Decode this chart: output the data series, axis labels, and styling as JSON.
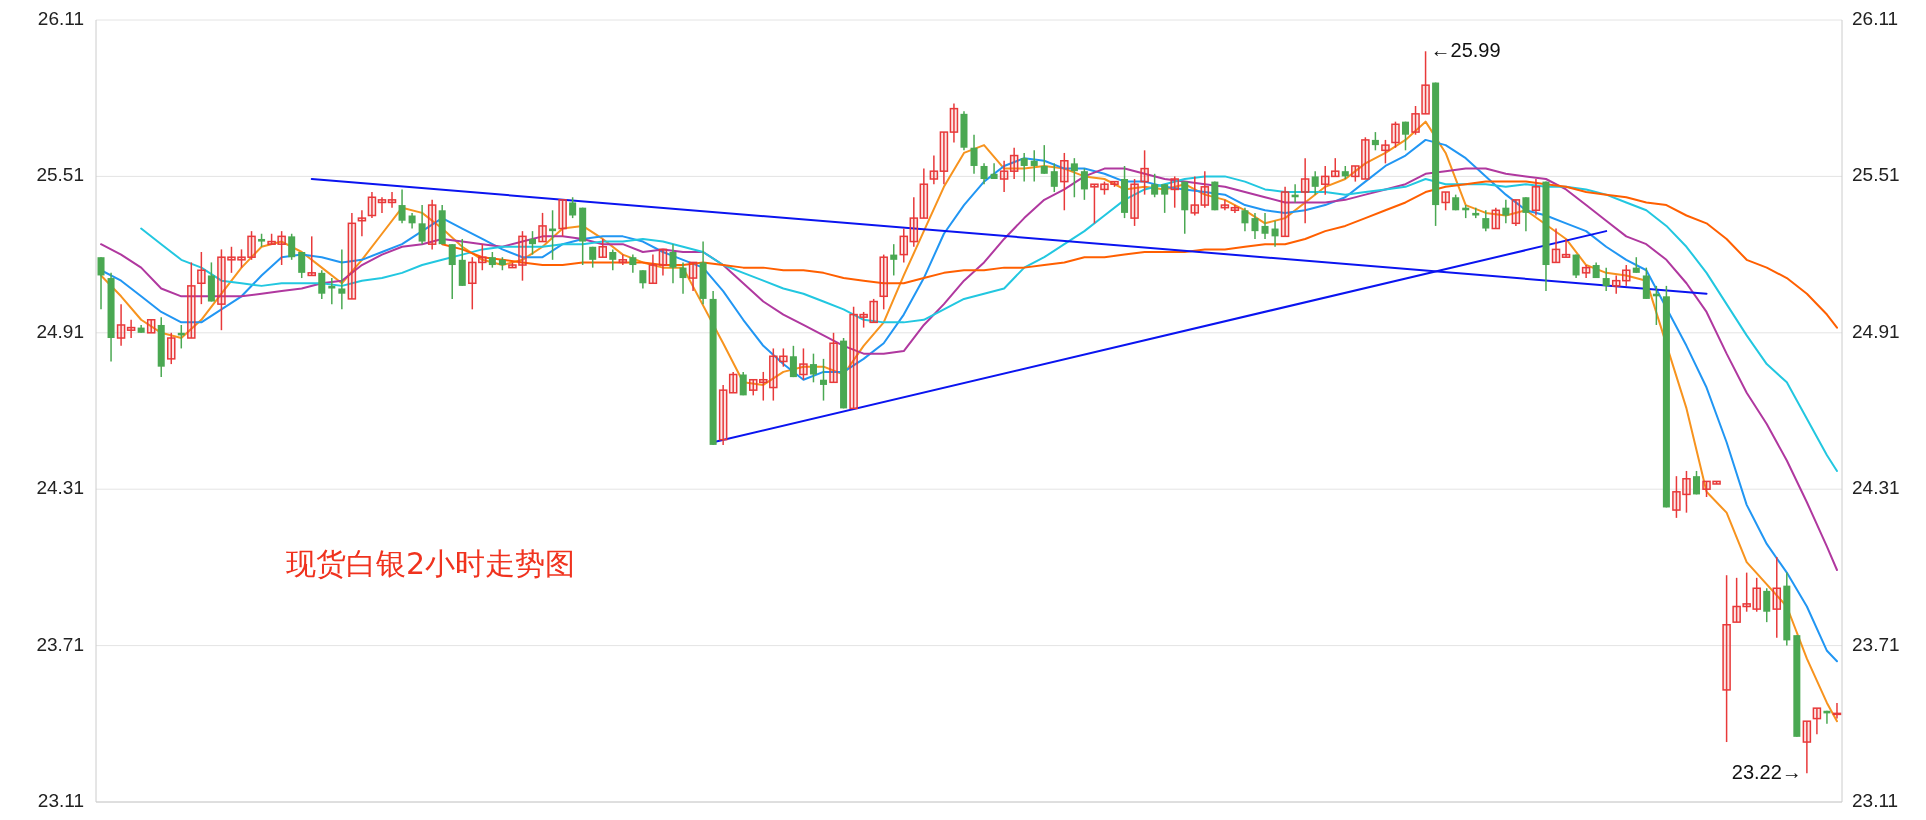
{
  "chart_data": {
    "type": "candlestick",
    "title": "现货白银2小时走势图",
    "categories": [
      null,
      null,
      null,
      null,
      null,
      null,
      null,
      null,
      null,
      null,
      null,
      null,
      null,
      null,
      null,
      null,
      null,
      null,
      null,
      null,
      null,
      null,
      null,
      null,
      null,
      null,
      null,
      null,
      null,
      null,
      null,
      null,
      null,
      null,
      null,
      null,
      null,
      null,
      null,
      null,
      null,
      null,
      null,
      null,
      null,
      null,
      null,
      null,
      null,
      null,
      null,
      null,
      null,
      null,
      null,
      null,
      null,
      null,
      null,
      null,
      null,
      null,
      null,
      null,
      null,
      null,
      null,
      null,
      null,
      null,
      null,
      null,
      null,
      null,
      null,
      null,
      null,
      null,
      null,
      null,
      null,
      null,
      null,
      null,
      null,
      null,
      null,
      null,
      null,
      null,
      null,
      null,
      null,
      null,
      null,
      null,
      null,
      null,
      null,
      null,
      null,
      null,
      null,
      null,
      null,
      null,
      null,
      null,
      null,
      null,
      null,
      null,
      null,
      null,
      null,
      null,
      null,
      null,
      null,
      null,
      null,
      null,
      null,
      null,
      null,
      null,
      null,
      null,
      null,
      null,
      null,
      null,
      null,
      null,
      null,
      null,
      null,
      null,
      null,
      null,
      null,
      null,
      null,
      null,
      null,
      null,
      null,
      null,
      null,
      null,
      null,
      null,
      null,
      null,
      null,
      null,
      null,
      null,
      null,
      null,
      null,
      null,
      null,
      null,
      null,
      null,
      null,
      null,
      null,
      null,
      null,
      null,
      null,
      null
    ],
    "ohlc": [
      [
        25.2,
        25.2,
        25.0,
        25.13
      ],
      [
        25.12,
        25.14,
        24.8,
        24.89
      ],
      [
        24.89,
        25.02,
        24.86,
        24.94
      ],
      [
        24.92,
        24.96,
        24.89,
        24.93
      ],
      [
        24.93,
        24.94,
        24.91,
        24.91
      ],
      [
        24.91,
        24.96,
        24.91,
        24.96
      ],
      [
        24.94,
        24.97,
        24.74,
        24.78
      ],
      [
        24.81,
        24.91,
        24.79,
        24.89
      ],
      [
        24.91,
        24.94,
        24.85,
        24.9
      ],
      [
        24.89,
        25.18,
        24.89,
        25.09
      ],
      [
        25.1,
        25.22,
        25.02,
        25.15
      ],
      [
        25.13,
        25.18,
        25.03,
        25.03
      ],
      [
        25.02,
        25.23,
        24.92,
        25.2
      ],
      [
        25.19,
        25.24,
        25.14,
        25.2
      ],
      [
        25.19,
        25.23,
        25.16,
        25.2
      ],
      [
        25.2,
        25.3,
        25.19,
        25.28
      ],
      [
        25.27,
        25.29,
        25.24,
        25.26
      ],
      [
        25.25,
        25.29,
        25.25,
        25.26
      ],
      [
        25.25,
        25.3,
        25.17,
        25.28
      ],
      [
        25.28,
        25.29,
        25.19,
        25.2
      ],
      [
        25.22,
        25.22,
        25.12,
        25.14
      ],
      [
        25.13,
        25.28,
        25.13,
        25.14
      ],
      [
        25.14,
        25.15,
        25.04,
        25.06
      ],
      [
        25.09,
        25.12,
        25.02,
        25.08
      ],
      [
        25.08,
        25.23,
        25.0,
        25.06
      ],
      [
        25.04,
        25.37,
        25.04,
        25.33
      ],
      [
        25.34,
        25.38,
        25.28,
        25.35
      ],
      [
        25.36,
        25.45,
        25.35,
        25.43
      ],
      [
        25.41,
        25.43,
        25.37,
        25.42
      ],
      [
        25.41,
        25.45,
        25.39,
        25.42
      ],
      [
        25.4,
        25.46,
        25.33,
        25.34
      ],
      [
        25.36,
        25.37,
        25.31,
        25.33
      ],
      [
        25.33,
        25.4,
        25.25,
        25.26
      ],
      [
        25.25,
        25.42,
        25.23,
        25.4
      ],
      [
        25.38,
        25.4,
        25.25,
        25.25
      ],
      [
        25.25,
        25.25,
        25.04,
        25.17
      ],
      [
        25.19,
        25.27,
        25.09,
        25.09
      ],
      [
        25.1,
        25.2,
        25.0,
        25.18
      ],
      [
        25.18,
        25.25,
        25.15,
        25.2
      ],
      [
        25.2,
        25.22,
        25.16,
        25.17
      ],
      [
        25.19,
        25.2,
        25.15,
        25.17
      ],
      [
        25.16,
        25.18,
        25.16,
        25.17
      ],
      [
        25.17,
        25.3,
        25.11,
        25.28
      ],
      [
        25.27,
        25.3,
        25.21,
        25.25
      ],
      [
        25.26,
        25.37,
        25.26,
        25.32
      ],
      [
        25.31,
        25.38,
        25.19,
        25.3
      ],
      [
        25.31,
        25.42,
        25.28,
        25.42
      ],
      [
        25.41,
        25.43,
        25.35,
        25.36
      ],
      [
        25.39,
        25.39,
        25.17,
        25.26
      ],
      [
        25.24,
        25.24,
        25.16,
        25.19
      ],
      [
        25.2,
        25.27,
        25.2,
        25.24
      ],
      [
        25.22,
        25.23,
        25.15,
        25.19
      ],
      [
        25.18,
        25.21,
        25.17,
        25.19
      ],
      [
        25.2,
        25.21,
        25.14,
        25.17
      ],
      [
        25.15,
        25.15,
        25.08,
        25.1
      ],
      [
        25.1,
        25.21,
        25.1,
        25.17
      ],
      [
        25.17,
        25.23,
        25.13,
        25.23
      ],
      [
        25.22,
        25.25,
        25.1,
        25.16
      ],
      [
        25.16,
        25.18,
        25.06,
        25.12
      ],
      [
        25.12,
        25.18,
        25.07,
        25.18
      ],
      [
        25.18,
        25.26,
        25.02,
        25.04
      ],
      [
        25.04,
        25.07,
        24.48,
        24.48
      ],
      [
        24.5,
        24.71,
        24.48,
        24.69
      ],
      [
        24.68,
        24.76,
        24.68,
        24.75
      ],
      [
        24.75,
        24.76,
        24.67,
        24.67
      ],
      [
        24.69,
        24.73,
        24.67,
        24.73
      ],
      [
        24.72,
        24.76,
        24.65,
        24.73
      ],
      [
        24.7,
        24.85,
        24.65,
        24.82
      ],
      [
        24.8,
        24.85,
        24.78,
        24.82
      ],
      [
        24.82,
        24.86,
        24.74,
        24.74
      ],
      [
        24.75,
        24.85,
        24.73,
        24.79
      ],
      [
        24.79,
        24.83,
        24.72,
        24.75
      ],
      [
        24.73,
        24.81,
        24.65,
        24.71
      ],
      [
        24.72,
        24.91,
        24.72,
        24.87
      ],
      [
        24.88,
        24.89,
        24.62,
        24.62
      ],
      [
        24.62,
        25.01,
        24.62,
        24.98
      ],
      [
        24.97,
        24.99,
        24.93,
        24.98
      ],
      [
        24.95,
        25.04,
        24.95,
        25.03
      ],
      [
        25.05,
        25.21,
        25.0,
        25.2
      ],
      [
        25.21,
        25.25,
        25.13,
        25.19
      ],
      [
        25.21,
        25.31,
        25.18,
        25.28
      ],
      [
        25.26,
        25.43,
        25.24,
        25.35
      ],
      [
        25.35,
        25.54,
        25.35,
        25.48
      ],
      [
        25.5,
        25.59,
        25.48,
        25.53
      ],
      [
        25.53,
        25.68,
        25.48,
        25.68
      ],
      [
        25.68,
        25.79,
        25.64,
        25.77
      ],
      [
        25.75,
        25.76,
        25.61,
        25.62
      ],
      [
        25.62,
        25.67,
        25.52,
        25.55
      ],
      [
        25.55,
        25.56,
        25.48,
        25.5
      ],
      [
        25.52,
        25.56,
        25.5,
        25.5
      ],
      [
        25.5,
        25.57,
        25.45,
        25.53
      ],
      [
        25.53,
        25.62,
        25.5,
        25.59
      ],
      [
        25.58,
        25.6,
        25.49,
        25.55
      ],
      [
        25.57,
        25.61,
        25.49,
        25.55
      ],
      [
        25.55,
        25.63,
        25.52,
        25.52
      ],
      [
        25.53,
        25.56,
        25.45,
        25.47
      ],
      [
        25.49,
        25.6,
        25.38,
        25.57
      ],
      [
        25.56,
        25.58,
        25.43,
        25.53
      ],
      [
        25.53,
        25.54,
        25.42,
        25.46
      ],
      [
        25.47,
        25.48,
        25.33,
        25.48
      ],
      [
        25.46,
        25.49,
        25.44,
        25.48
      ],
      [
        25.48,
        25.49,
        25.47,
        25.49
      ],
      [
        25.5,
        25.55,
        25.35,
        25.37
      ],
      [
        25.35,
        25.5,
        25.32,
        25.48
      ],
      [
        25.49,
        25.61,
        25.44,
        25.54
      ],
      [
        25.48,
        25.52,
        25.43,
        25.44
      ],
      [
        25.48,
        25.48,
        25.37,
        25.44
      ],
      [
        25.46,
        25.51,
        25.39,
        25.5
      ],
      [
        25.49,
        25.49,
        25.29,
        25.38
      ],
      [
        25.37,
        25.51,
        25.36,
        25.4
      ],
      [
        25.4,
        25.53,
        25.39,
        25.47
      ],
      [
        25.49,
        25.49,
        25.38,
        25.38
      ],
      [
        25.39,
        25.42,
        25.38,
        25.4
      ],
      [
        25.38,
        25.4,
        25.37,
        25.39
      ],
      [
        25.38,
        25.39,
        25.3,
        25.33
      ],
      [
        25.35,
        25.37,
        25.27,
        25.3
      ],
      [
        25.32,
        25.37,
        25.27,
        25.29
      ],
      [
        25.31,
        25.34,
        25.24,
        25.28
      ],
      [
        25.28,
        25.47,
        25.28,
        25.45
      ],
      [
        25.44,
        25.48,
        25.41,
        25.43
      ],
      [
        25.45,
        25.58,
        25.33,
        25.5
      ],
      [
        25.51,
        25.53,
        25.44,
        25.47
      ],
      [
        25.48,
        25.55,
        25.44,
        25.51
      ],
      [
        25.51,
        25.58,
        25.51,
        25.53
      ],
      [
        25.53,
        25.55,
        25.5,
        25.51
      ],
      [
        25.51,
        25.55,
        25.49,
        25.55
      ],
      [
        25.5,
        25.66,
        25.5,
        25.65
      ],
      [
        25.65,
        25.68,
        25.61,
        25.63
      ],
      [
        25.61,
        25.65,
        25.56,
        25.63
      ],
      [
        25.64,
        25.72,
        25.62,
        25.71
      ],
      [
        25.72,
        25.72,
        25.61,
        25.67
      ],
      [
        25.68,
        25.78,
        25.67,
        25.75
      ],
      [
        25.75,
        25.99,
        25.75,
        25.86
      ],
      [
        25.87,
        25.87,
        25.32,
        25.4
      ],
      [
        25.41,
        25.45,
        25.38,
        25.45
      ],
      [
        25.43,
        25.44,
        25.38,
        25.38
      ],
      [
        25.39,
        25.4,
        25.35,
        25.38
      ],
      [
        25.37,
        25.39,
        25.35,
        25.36
      ],
      [
        25.35,
        25.38,
        25.3,
        25.31
      ],
      [
        25.31,
        25.39,
        25.31,
        25.38
      ],
      [
        25.39,
        25.42,
        25.33,
        25.36
      ],
      [
        25.33,
        25.42,
        25.32,
        25.42
      ],
      [
        25.43,
        25.43,
        25.3,
        25.37
      ],
      [
        25.38,
        25.5,
        25.36,
        25.47
      ],
      [
        25.49,
        25.49,
        25.07,
        25.17
      ],
      [
        25.18,
        25.31,
        25.18,
        25.23
      ],
      [
        25.2,
        25.27,
        25.2,
        25.21
      ],
      [
        25.21,
        25.21,
        25.12,
        25.13
      ],
      [
        25.14,
        25.17,
        25.12,
        25.16
      ],
      [
        25.17,
        25.18,
        25.12,
        25.12
      ],
      [
        25.12,
        25.16,
        25.07,
        25.09
      ],
      [
        25.09,
        25.13,
        25.06,
        25.11
      ],
      [
        25.11,
        25.17,
        25.09,
        25.15
      ],
      [
        25.16,
        25.2,
        25.14,
        25.14
      ],
      [
        25.13,
        25.16,
        25.04,
        25.04
      ],
      [
        25.06,
        25.09,
        24.94,
        25.05
      ],
      [
        25.05,
        25.09,
        24.24,
        24.24
      ],
      [
        24.23,
        24.36,
        24.2,
        24.3
      ],
      [
        24.29,
        24.38,
        24.22,
        24.35
      ],
      [
        24.36,
        24.38,
        24.29,
        24.29
      ],
      [
        24.31,
        24.34,
        24.28,
        24.34
      ],
      [
        24.33,
        24.34,
        24.33,
        24.34
      ],
      [
        23.54,
        23.98,
        23.34,
        23.79
      ],
      [
        23.8,
        23.97,
        23.8,
        23.86
      ],
      [
        23.86,
        23.99,
        23.84,
        23.87
      ],
      [
        23.85,
        23.97,
        23.84,
        23.93
      ],
      [
        23.92,
        23.93,
        23.8,
        23.84
      ],
      [
        23.85,
        24.05,
        23.74,
        23.93
      ],
      [
        23.94,
        23.99,
        23.71,
        23.73
      ],
      [
        23.75,
        23.75,
        23.36,
        23.36
      ],
      [
        23.34,
        23.42,
        23.22,
        23.42
      ],
      [
        23.43,
        23.47,
        23.37,
        23.47
      ],
      [
        23.46,
        23.46,
        23.41,
        23.45
      ],
      [
        23.45,
        23.49,
        23.43,
        23.45
      ]
    ],
    "colors": [
      "#4aa852",
      "#4aa852",
      "#e8393a",
      "#e8393a",
      "#4aa852",
      "#e8393a",
      "#4aa852",
      "#e8393a",
      "#4aa852",
      "#e8393a",
      "#e8393a",
      "#4aa852",
      "#e8393a",
      "#e8393a",
      "#e8393a",
      "#e8393a",
      "#4aa852",
      "#e8393a",
      "#e8393a",
      "#4aa852",
      "#4aa852",
      "#e8393a",
      "#4aa852",
      "#4aa852",
      "#4aa852",
      "#e8393a",
      "#e8393a",
      "#e8393a",
      "#e8393a",
      "#e8393a",
      "#4aa852",
      "#4aa852",
      "#4aa852",
      "#e8393a",
      "#4aa852",
      "#4aa852",
      "#4aa852",
      "#e8393a",
      "#e8393a",
      "#4aa852",
      "#4aa852",
      "#e8393a",
      "#e8393a",
      "#4aa852",
      "#e8393a",
      "#4aa852",
      "#e8393a",
      "#4aa852",
      "#4aa852",
      "#4aa852",
      "#e8393a",
      "#4aa852",
      "#e8393a",
      "#4aa852",
      "#4aa852",
      "#e8393a",
      "#e8393a",
      "#4aa852",
      "#4aa852",
      "#e8393a",
      "#4aa852",
      "#4aa852",
      "#e8393a",
      "#e8393a",
      "#4aa852",
      "#e8393a",
      "#e8393a",
      "#e8393a",
      "#e8393a",
      "#4aa852",
      "#e8393a",
      "#4aa852",
      "#4aa852",
      "#e8393a",
      "#4aa852",
      "#e8393a",
      "#e8393a",
      "#e8393a",
      "#e8393a",
      "#4aa852",
      "#e8393a",
      "#e8393a",
      "#e8393a",
      "#e8393a",
      "#e8393a",
      "#e8393a",
      "#4aa852",
      "#4aa852",
      "#4aa852",
      "#4aa852",
      "#e8393a",
      "#e8393a",
      "#4aa852",
      "#4aa852",
      "#4aa852",
      "#4aa852",
      "#e8393a",
      "#4aa852",
      "#4aa852",
      "#e8393a",
      "#e8393a",
      "#e8393a",
      "#4aa852",
      "#e8393a",
      "#e8393a",
      "#4aa852",
      "#4aa852",
      "#e8393a",
      "#4aa852",
      "#e8393a",
      "#e8393a",
      "#4aa852",
      "#e8393a",
      "#e8393a",
      "#4aa852",
      "#4aa852",
      "#4aa852",
      "#4aa852",
      "#e8393a",
      "#4aa852",
      "#e8393a",
      "#4aa852",
      "#e8393a",
      "#e8393a",
      "#4aa852",
      "#e8393a",
      "#e8393a",
      "#4aa852",
      "#e8393a",
      "#e8393a",
      "#4aa852",
      "#e8393a",
      "#e8393a",
      "#4aa852",
      "#e8393a",
      "#4aa852",
      "#4aa852",
      "#4aa852",
      "#4aa852",
      "#e8393a",
      "#4aa852",
      "#e8393a",
      "#4aa852",
      "#e8393a",
      "#4aa852",
      "#e8393a",
      "#e8393a",
      "#4aa852",
      "#e8393a",
      "#4aa852",
      "#4aa852",
      "#e8393a",
      "#e8393a",
      "#4aa852",
      "#4aa852",
      "#4aa852",
      "#4aa852",
      "#e8393a",
      "#e8393a",
      "#4aa852",
      "#e8393a",
      "#e8393a",
      "#e8393a",
      "#e8393a",
      "#e8393a",
      "#e8393a",
      "#4aa852",
      "#e8393a",
      "#4aa852",
      "#4aa852",
      "#e8393a",
      "#e8393a",
      "#4aa852",
      "#e8393a"
    ],
    "series": [
      {
        "type": "line",
        "color": "#f7931e",
        "values": [
          25.13,
          null,
          25.05,
          null,
          24.96,
          null,
          24.91,
          null,
          24.89,
          null,
          24.96,
          null,
          25.06,
          null,
          25.16,
          null,
          25.24,
          null,
          25.26,
          null,
          25.22,
          null,
          25.16,
          null,
          25.1,
          null,
          25.19,
          null,
          25.29,
          null,
          25.39,
          null,
          25.37,
          null,
          25.31,
          null,
          25.24,
          null,
          25.19,
          null,
          25.17,
          null,
          25.19,
          null,
          25.24,
          null,
          25.31,
          null,
          25.32,
          null,
          25.27,
          null,
          25.21,
          null,
          25.18,
          null,
          25.16,
          null,
          25.16,
          null,
          null,
          null,
          24.87,
          null,
          24.72,
          null,
          24.71,
          null,
          24.76,
          null,
          24.78,
          null,
          24.78,
          null,
          24.75,
          null,
          24.86,
          null,
          24.95,
          null,
          25.13,
          null,
          25.3,
          null,
          25.47,
          null,
          25.6,
          null,
          25.63,
          null,
          25.54,
          null,
          25.54,
          null,
          25.55,
          null,
          25.54,
          null,
          25.51,
          null,
          25.5,
          null,
          25.46,
          null,
          25.47,
          null,
          25.46,
          null,
          25.48,
          null,
          25.44,
          null,
          25.42,
          null,
          25.38,
          null,
          25.33,
          null,
          25.35,
          null,
          25.41,
          null,
          25.47,
          null,
          25.5,
          null,
          25.56,
          null,
          25.6,
          null,
          25.65,
          null,
          25.72,
          null,
          25.6,
          null,
          25.4,
          null,
          25.37,
          null,
          25.36,
          null,
          25.38,
          null,
          null,
          null,
          25.27,
          null,
          25.17,
          null,
          25.14,
          null,
          25.13,
          null,
          25.11,
          null,
          null,
          null,
          24.62,
          null,
          24.3,
          null,
          24.22,
          null,
          24.03,
          null,
          null,
          null,
          23.86,
          null,
          23.66,
          null,
          23.49,
          23.42
        ]
      },
      {
        "type": "line",
        "color": "#2196f3",
        "values": [
          25.15,
          null,
          25.11,
          null,
          25.05,
          null,
          24.99,
          null,
          24.95,
          null,
          24.95,
          null,
          25.0,
          null,
          25.05,
          null,
          25.13,
          null,
          25.2,
          null,
          25.21,
          null,
          25.2,
          null,
          25.18,
          null,
          25.19,
          null,
          25.22,
          null,
          25.25,
          null,
          25.3,
          null,
          25.35,
          null,
          25.31,
          null,
          25.27,
          null,
          25.23,
          null,
          25.2,
          null,
          25.2,
          null,
          25.25,
          null,
          25.27,
          null,
          25.28,
          null,
          25.28,
          null,
          25.26,
          null,
          25.22,
          null,
          25.19,
          null,
          25.16,
          null,
          25.07,
          null,
          24.96,
          null,
          24.86,
          null,
          24.79,
          null,
          24.73,
          null,
          24.76,
          null,
          24.76,
          null,
          24.81,
          null,
          24.87,
          null,
          24.98,
          null,
          25.12,
          null,
          25.29,
          null,
          25.4,
          null,
          25.49,
          null,
          25.55,
          null,
          25.58,
          null,
          25.57,
          null,
          25.54,
          null,
          25.54,
          null,
          25.52,
          null,
          25.49,
          null,
          25.49,
          null,
          25.47,
          null,
          25.46,
          null,
          25.45,
          null,
          25.44,
          null,
          25.4,
          null,
          25.38,
          null,
          25.37,
          null,
          25.38,
          null,
          25.4,
          null,
          25.43,
          null,
          25.49,
          null,
          25.55,
          null,
          25.59,
          null,
          25.65,
          null,
          25.63,
          null,
          25.58,
          null,
          25.51,
          null,
          25.44,
          null,
          25.38,
          null,
          25.36,
          null,
          25.33,
          null,
          25.3,
          null,
          25.24,
          null,
          25.19,
          null,
          25.15,
          null,
          null,
          null,
          24.86,
          null,
          24.7,
          null,
          24.49,
          null,
          24.25,
          null,
          24.1,
          null,
          23.99,
          null,
          23.86,
          null,
          23.69,
          23.65
        ]
      },
      {
        "type": "line",
        "color": "#b0389f",
        "values": [
          25.25,
          null,
          25.21,
          null,
          25.16,
          null,
          25.08,
          null,
          25.05,
          null,
          25.05,
          null,
          25.05,
          null,
          25.05,
          null,
          25.06,
          null,
          25.07,
          null,
          25.08,
          null,
          25.1,
          null,
          25.11,
          null,
          25.17,
          null,
          25.21,
          null,
          25.24,
          null,
          25.25,
          null,
          25.27,
          null,
          25.26,
          null,
          25.25,
          null,
          25.24,
          null,
          25.26,
          null,
          25.28,
          null,
          25.28,
          null,
          25.27,
          null,
          25.25,
          null,
          25.25,
          null,
          25.22,
          null,
          25.23,
          null,
          25.22,
          null,
          25.22,
          null,
          25.17,
          null,
          25.1,
          null,
          25.03,
          null,
          24.98,
          null,
          24.94,
          null,
          24.9,
          null,
          24.86,
          null,
          24.83,
          null,
          24.83,
          null,
          24.84,
          null,
          24.94,
          null,
          25.02,
          null,
          25.11,
          null,
          25.18,
          null,
          25.27,
          null,
          25.35,
          null,
          25.42,
          null,
          25.46,
          null,
          25.51,
          null,
          25.54,
          null,
          25.54,
          null,
          25.52,
          null,
          25.5,
          null,
          25.49,
          null,
          25.48,
          null,
          25.47,
          null,
          25.45,
          null,
          25.43,
          null,
          25.41,
          null,
          25.41,
          null,
          25.41,
          null,
          25.42,
          null,
          25.44,
          null,
          25.46,
          null,
          25.48,
          null,
          25.52,
          null,
          25.53,
          null,
          25.54,
          null,
          25.54,
          null,
          25.52,
          null,
          25.51,
          null,
          25.5,
          null,
          25.46,
          null,
          25.4,
          null,
          25.34,
          null,
          25.28,
          null,
          25.25,
          null,
          25.19,
          null,
          25.1,
          null,
          24.99,
          null,
          24.83,
          null,
          24.68,
          null,
          24.56,
          null,
          24.42,
          null,
          24.26,
          null,
          24.09,
          24.0
        ]
      },
      {
        "type": "line",
        "color": "#22c7e0",
        "values": [
          null,
          null,
          null,
          null,
          25.31,
          null,
          25.25,
          null,
          25.19,
          null,
          25.16,
          null,
          25.11,
          null,
          25.1,
          null,
          25.09,
          null,
          25.1,
          null,
          25.1,
          null,
          25.1,
          null,
          25.09,
          null,
          25.11,
          null,
          25.12,
          null,
          25.14,
          null,
          25.17,
          null,
          25.19,
          null,
          25.21,
          null,
          25.23,
          null,
          25.24,
          null,
          25.24,
          null,
          25.24,
          null,
          25.25,
          null,
          25.25,
          null,
          25.26,
          null,
          25.26,
          null,
          25.27,
          null,
          25.26,
          null,
          25.24,
          null,
          25.22,
          null,
          25.17,
          null,
          25.14,
          null,
          25.11,
          null,
          25.08,
          null,
          25.06,
          null,
          25.03,
          null,
          25.0,
          null,
          24.96,
          null,
          24.95,
          null,
          24.95,
          null,
          24.96,
          null,
          25.0,
          null,
          25.04,
          null,
          25.06,
          null,
          25.08,
          null,
          25.16,
          null,
          25.2,
          null,
          25.25,
          null,
          25.3,
          null,
          25.36,
          null,
          25.42,
          null,
          25.46,
          null,
          25.48,
          null,
          25.5,
          null,
          25.51,
          null,
          25.51,
          null,
          25.49,
          null,
          25.46,
          null,
          25.45,
          null,
          25.45,
          null,
          25.45,
          null,
          25.44,
          null,
          25.45,
          null,
          25.46,
          null,
          25.47,
          null,
          25.5,
          null,
          25.48,
          null,
          25.48,
          null,
          25.48,
          null,
          25.47,
          null,
          25.48,
          null,
          25.47,
          null,
          25.47,
          null,
          25.46,
          null,
          25.44,
          null,
          25.41,
          null,
          25.38,
          null,
          25.32,
          null,
          25.24,
          null,
          25.14,
          null,
          25.02,
          null,
          24.9,
          null,
          24.79,
          null,
          24.72,
          null,
          24.58,
          null,
          24.44,
          24.38
        ]
      },
      {
        "type": "line",
        "color": "#ff5f00",
        "values": [
          null,
          null,
          null,
          null,
          null,
          null,
          null,
          null,
          null,
          null,
          null,
          null,
          null,
          null,
          null,
          null,
          null,
          null,
          null,
          null,
          null,
          null,
          null,
          null,
          null,
          null,
          null,
          null,
          null,
          null,
          null,
          null,
          null,
          null,
          25.25,
          null,
          25.23,
          null,
          25.2,
          null,
          25.19,
          null,
          25.18,
          null,
          25.17,
          null,
          25.17,
          null,
          25.18,
          null,
          25.18,
          null,
          25.18,
          null,
          25.18,
          null,
          25.17,
          null,
          25.17,
          null,
          25.18,
          null,
          25.17,
          null,
          25.16,
          null,
          25.16,
          null,
          25.15,
          null,
          25.15,
          null,
          25.14,
          null,
          25.12,
          null,
          25.11,
          null,
          25.1,
          null,
          25.1,
          null,
          25.12,
          null,
          25.14,
          null,
          25.15,
          null,
          25.15,
          null,
          25.16,
          null,
          25.16,
          null,
          25.17,
          null,
          25.18,
          null,
          25.2,
          null,
          25.2,
          null,
          25.21,
          null,
          25.22,
          null,
          25.22,
          null,
          25.22,
          null,
          25.23,
          null,
          25.23,
          null,
          25.24,
          null,
          25.25,
          null,
          25.25,
          null,
          25.27,
          null,
          25.3,
          null,
          25.32,
          null,
          25.35,
          null,
          25.38,
          null,
          25.41,
          null,
          25.45,
          null,
          25.47,
          null,
          25.48,
          null,
          25.49,
          null,
          25.49,
          null,
          25.49,
          null,
          25.48,
          null,
          25.47,
          null,
          25.45,
          null,
          25.44,
          null,
          25.43,
          null,
          25.41,
          null,
          25.4,
          null,
          25.36,
          null,
          25.33,
          null,
          25.27,
          null,
          25.19,
          null,
          25.16,
          null,
          25.12,
          null,
          25.06,
          null,
          24.98,
          24.93
        ]
      },
      {
        "type": "line",
        "color": "#0a14f0",
        "values": [
          null,
          null,
          null,
          null,
          null,
          null,
          null,
          null,
          null,
          null,
          null,
          null,
          null,
          null,
          null,
          null,
          null,
          null,
          null,
          null,
          null,
          25.5,
          null,
          null,
          null,
          null,
          null,
          null,
          null,
          null,
          null,
          null,
          null,
          null,
          null,
          null,
          null,
          null,
          null,
          null,
          null,
          null,
          null,
          null,
          null,
          null,
          null,
          null,
          null,
          null,
          null,
          null,
          null,
          null,
          null,
          null,
          null,
          null,
          null,
          null,
          null,
          null,
          null,
          null,
          null,
          null,
          null,
          null,
          null,
          null,
          null,
          null,
          null,
          null,
          null,
          null,
          null,
          null,
          null,
          null,
          null,
          null,
          null,
          null,
          null,
          null,
          null,
          null,
          null,
          null,
          null,
          null,
          null,
          null,
          null,
          null,
          null,
          null,
          null,
          null,
          null,
          null,
          null,
          null,
          null,
          null,
          null,
          null,
          null,
          null,
          null,
          null,
          null,
          null,
          null,
          null,
          null,
          null,
          null,
          null,
          null,
          null,
          null,
          null,
          null,
          null,
          null,
          null,
          null,
          null,
          null,
          null,
          null,
          null,
          null,
          null,
          null,
          null,
          null,
          null,
          null,
          null,
          null,
          null,
          null,
          null,
          null,
          null,
          null,
          null,
          null,
          null,
          null,
          null,
          null,
          null,
          null,
          null,
          null,
          null,
          25.06,
          null,
          null,
          null,
          null,
          null,
          null,
          null,
          null,
          null,
          null,
          null,
          null,
          null
        ]
      },
      {
        "type": "line",
        "color": "#0a14f0",
        "values": [
          null,
          null,
          null,
          null,
          null,
          null,
          null,
          null,
          null,
          null,
          null,
          null,
          null,
          null,
          null,
          null,
          null,
          null,
          null,
          null,
          null,
          null,
          null,
          null,
          null,
          null,
          null,
          null,
          null,
          null,
          null,
          null,
          null,
          null,
          null,
          null,
          null,
          null,
          null,
          null,
          null,
          null,
          null,
          null,
          null,
          null,
          null,
          null,
          null,
          null,
          null,
          null,
          null,
          null,
          null,
          null,
          null,
          null,
          null,
          null,
          null,
          24.49,
          null,
          null,
          null,
          null,
          null,
          null,
          null,
          null,
          null,
          null,
          null,
          null,
          null,
          null,
          null,
          null,
          null,
          null,
          null,
          null,
          null,
          null,
          null,
          null,
          null,
          null,
          null,
          null,
          null,
          null,
          null,
          null,
          null,
          null,
          null,
          null,
          null,
          null,
          null,
          null,
          null,
          null,
          null,
          null,
          null,
          null,
          null,
          null,
          null,
          null,
          null,
          null,
          null,
          null,
          null,
          null,
          null,
          null,
          null,
          null,
          null,
          null,
          null,
          null,
          null,
          null,
          null,
          null,
          null,
          null,
          null,
          null,
          null,
          null,
          null,
          null,
          null,
          null,
          null,
          null,
          null,
          null,
          null,
          null,
          null,
          null,
          null,
          null,
          25.3,
          null,
          null,
          null,
          null,
          null,
          null,
          null,
          null,
          null,
          null,
          null,
          null,
          null,
          null,
          null,
          null,
          null,
          null,
          null,
          null,
          null,
          null,
          null
        ]
      }
    ],
    "annotations": [
      "←25.99",
      "23.22→"
    ],
    "ylim": [
      23.11,
      26.11
    ],
    "yticks": [
      23.11,
      23.71,
      24.31,
      24.91,
      25.51,
      26.11
    ],
    "y2lim": [
      23.11,
      26.11
    ],
    "y2ticks": [
      23.11,
      23.71,
      24.31,
      24.91,
      25.51,
      26.11
    ],
    "grid": "y",
    "tick_labels": "y"
  }
}
